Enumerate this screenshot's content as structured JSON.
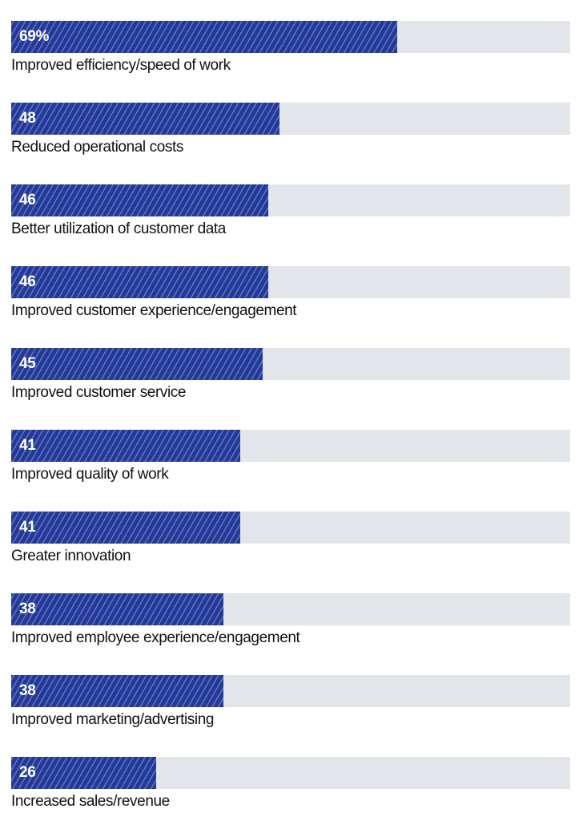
{
  "chart_data": {
    "type": "bar",
    "orientation": "horizontal",
    "xlim": [
      0,
      100
    ],
    "unit": "%",
    "categories": [
      "Improved efficiency/speed of work",
      "Reduced operational costs",
      "Better utilization of customer data",
      "Improved customer experience/engagement",
      "Improved customer service",
      "Improved quality of work",
      "Greater innovation",
      "Improved employee experience/engagement",
      "Improved marketing/advertising",
      "Increased sales/revenue"
    ],
    "values": [
      69,
      48,
      46,
      46,
      45,
      41,
      41,
      38,
      38,
      26
    ],
    "value_labels": [
      "69%",
      "48",
      "46",
      "46",
      "45",
      "41",
      "41",
      "38",
      "38",
      "26"
    ]
  },
  "colors": {
    "bar_fill": "#22399a",
    "track": "#e2e6ea",
    "value_text": "#ffffff",
    "label_text": "#111111"
  }
}
